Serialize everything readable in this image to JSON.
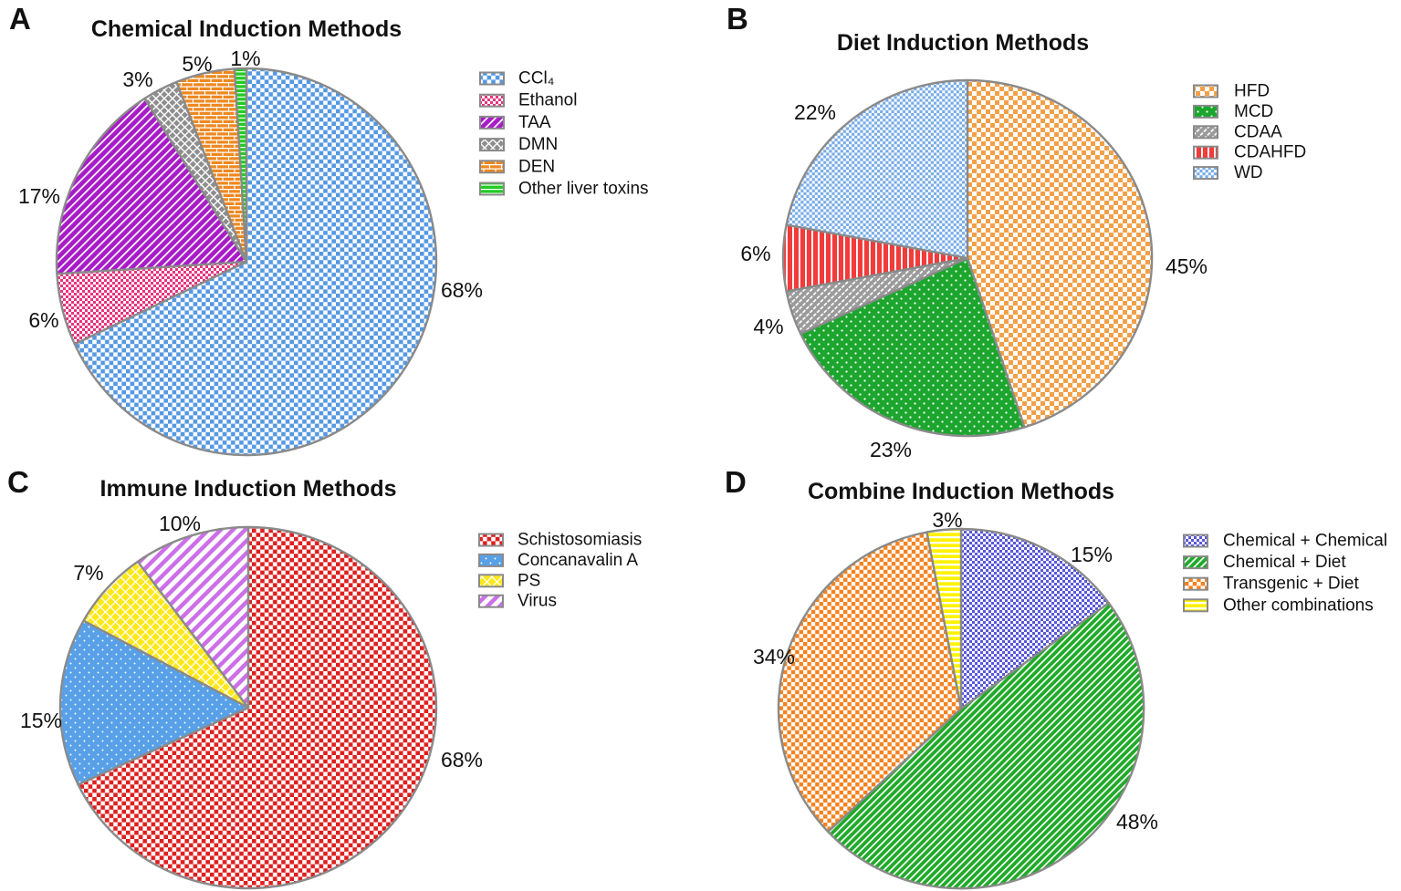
{
  "figure": {
    "background": "#ffffff",
    "outline_color": "#8a8a8a",
    "text_color": "#111111"
  },
  "chart_data": [
    {
      "type": "pie",
      "panel": "A",
      "title": "Chemical Induction Methods",
      "legend_position": "right",
      "start_angle_deg": 0,
      "direction": "clockwise",
      "slices": [
        {
          "label": "CCl₄",
          "value_pct": 68,
          "pattern": {
            "type": "checker",
            "cell": 4.6,
            "fg": "#5598e2"
          }
        },
        {
          "label": "Ethanol",
          "value_pct": 6,
          "pattern": {
            "type": "checker",
            "cell": 3,
            "fg": "#e8337c"
          }
        },
        {
          "label": "TAA",
          "value_pct": 17,
          "pattern": {
            "type": "diag",
            "gap": 6.5,
            "lw": 1.7,
            "bg": "#a81cc8"
          }
        },
        {
          "label": "DMN",
          "value_pct": 3,
          "pattern": {
            "type": "crosshatch",
            "bg": "#8e8e8e"
          }
        },
        {
          "label": "DEN",
          "value_pct": 5,
          "pattern": {
            "type": "brick",
            "bg": "#ee8820"
          }
        },
        {
          "label": "Other liver toxins",
          "value_pct": 1,
          "pattern": {
            "type": "hstripes",
            "gap": 4.6,
            "lw": 1.2,
            "bg": "#21cc21"
          }
        }
      ]
    },
    {
      "type": "pie",
      "panel": "B",
      "title": "Diet Induction Methods",
      "legend_position": "right",
      "start_angle_deg": 0,
      "direction": "clockwise",
      "slices": [
        {
          "label": "HFD",
          "value_pct": 45,
          "pattern": {
            "type": "checker",
            "cell": 5,
            "fg": "#f2a048"
          }
        },
        {
          "label": "MCD",
          "value_pct": 23,
          "pattern": {
            "type": "dots",
            "step": 5,
            "r": 1.1,
            "bg": "#1ca62e"
          }
        },
        {
          "label": "CDAA",
          "value_pct": 4,
          "pattern": {
            "type": "diagdash",
            "gap": 5.5,
            "lw": 1.7,
            "bg": "#9a9a9a"
          }
        },
        {
          "label": "CDAHFD",
          "value_pct": 6,
          "pattern": {
            "type": "vstripes",
            "gap": 7,
            "lw": 1.9,
            "bg": "#f23b3b"
          }
        },
        {
          "label": "WD",
          "value_pct": 22,
          "pattern": {
            "type": "checker",
            "cell": 3.1,
            "fg": "#74aae6"
          }
        }
      ]
    },
    {
      "type": "pie",
      "panel": "C",
      "title": "Immune Induction Methods",
      "legend_position": "right",
      "start_angle_deg": 0,
      "direction": "clockwise",
      "slices": [
        {
          "label": "Schistosomiasis",
          "value_pct": 68,
          "pattern": {
            "type": "checker",
            "cell": 4.6,
            "fg": "#dd1f1f"
          }
        },
        {
          "label": "Concanavalin A",
          "value_pct": 15,
          "pattern": {
            "type": "dots",
            "step": 5,
            "r": 0.95,
            "bg": "#58a0e8"
          }
        },
        {
          "label": "PS",
          "value_pct": 7,
          "pattern": {
            "type": "diamonds",
            "fg": "#ffe81a"
          }
        },
        {
          "label": "Virus",
          "value_pct": 10,
          "pattern": {
            "type": "diagstripe",
            "gap": 5,
            "lw": 4.5,
            "fg": "#cc6fe8"
          }
        }
      ]
    },
    {
      "type": "pie",
      "panel": "D",
      "title": "Combine Induction Methods",
      "legend_position": "right",
      "start_angle_deg": 0,
      "direction": "clockwise",
      "slices": [
        {
          "label": "Chemical + Chemical",
          "value_pct": 15,
          "pattern": {
            "type": "checker",
            "cell": 3,
            "fg": "#5857d8"
          }
        },
        {
          "label": "Chemical + Diet",
          "value_pct": 48,
          "pattern": {
            "type": "diag",
            "gap": 5.5,
            "lw": 1.7,
            "bg": "#1faa28"
          }
        },
        {
          "label": "Transgenic + Diet",
          "value_pct": 34,
          "pattern": {
            "type": "checker",
            "cell": 4.4,
            "fg": "#f5821e"
          }
        },
        {
          "label": "Other combinations",
          "value_pct": 3,
          "pattern": {
            "type": "hstripes",
            "gap": 6,
            "lw": 2.3,
            "bg": "#fff200"
          }
        }
      ]
    }
  ]
}
